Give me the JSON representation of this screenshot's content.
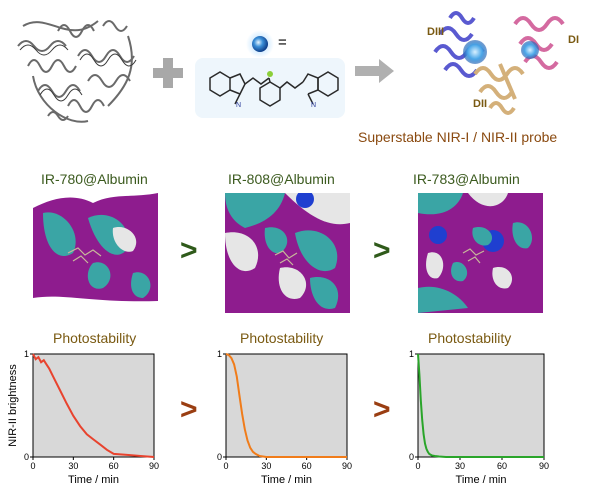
{
  "top": {
    "equals": "=",
    "probe_title": "Superstable NIR-I / NIR-II probe",
    "domains": [
      "DIII",
      "DI",
      "DII"
    ]
  },
  "complexes": [
    {
      "name": "IR-780@Albumin",
      "photostability": "Photostability"
    },
    {
      "name": "IR-808@Albumin",
      "photostability": "Photostability"
    },
    {
      "name": "IR-783@Albumin",
      "photostability": "Photostability"
    }
  ],
  "comparators": [
    ">",
    ">",
    ">",
    ">"
  ],
  "colors": {
    "text_green": "#3b5a1e",
    "text_brown": "#7a5a12",
    "arrow_green": "#2f5a1a",
    "arrow_brown": "#9a3e12",
    "plot_bg": "#d8d8d8",
    "surface_purple": "#8e1c8e",
    "surface_teal": "#3aa5a5",
    "surface_white": "#e6e6e6",
    "surface_blue": "#1f3fd0"
  },
  "chart_data": [
    {
      "type": "line",
      "ylabel": "NIR-II brightness",
      "xlabel": "Time / min",
      "xlim": [
        0,
        90
      ],
      "ylim": [
        0,
        1
      ],
      "xticks": [
        0,
        30,
        60,
        90
      ],
      "yticks": [
        0,
        1
      ],
      "color": "#e8432e",
      "x": [
        0,
        2,
        4,
        6,
        8,
        10,
        12,
        15,
        20,
        25,
        30,
        35,
        40,
        45,
        50,
        55,
        60,
        70,
        80,
        90
      ],
      "y": [
        1.0,
        0.95,
        0.97,
        0.92,
        0.94,
        0.9,
        0.86,
        0.78,
        0.65,
        0.52,
        0.4,
        0.3,
        0.22,
        0.17,
        0.12,
        0.07,
        0.03,
        0.02,
        0.01,
        0.0
      ]
    },
    {
      "type": "line",
      "ylabel": "",
      "xlabel": "Time / min",
      "xlim": [
        0,
        90
      ],
      "ylim": [
        0,
        1
      ],
      "xticks": [
        0,
        30,
        60,
        90
      ],
      "yticks": [
        0,
        1
      ],
      "color": "#f07c1a",
      "x": [
        0,
        2,
        4,
        6,
        8,
        10,
        12,
        14,
        16,
        18,
        20,
        22,
        25,
        30,
        40,
        60,
        90
      ],
      "y": [
        1.0,
        0.99,
        0.96,
        0.9,
        0.78,
        0.6,
        0.42,
        0.27,
        0.16,
        0.09,
        0.05,
        0.03,
        0.01,
        0.0,
        0.0,
        0.0,
        0.0
      ]
    },
    {
      "type": "line",
      "ylabel": "",
      "xlabel": "Time / min",
      "xlim": [
        0,
        90
      ],
      "ylim": [
        0,
        1
      ],
      "xticks": [
        0,
        30,
        60,
        90
      ],
      "yticks": [
        0,
        1
      ],
      "color": "#2aa52a",
      "x": [
        0,
        1,
        2,
        3,
        4,
        5,
        6,
        7,
        8,
        10,
        12,
        15,
        20,
        30,
        60,
        90
      ],
      "y": [
        1.0,
        0.8,
        0.55,
        0.36,
        0.22,
        0.13,
        0.08,
        0.05,
        0.03,
        0.015,
        0.01,
        0.005,
        0.0,
        0.0,
        0.0,
        0.0
      ]
    }
  ]
}
